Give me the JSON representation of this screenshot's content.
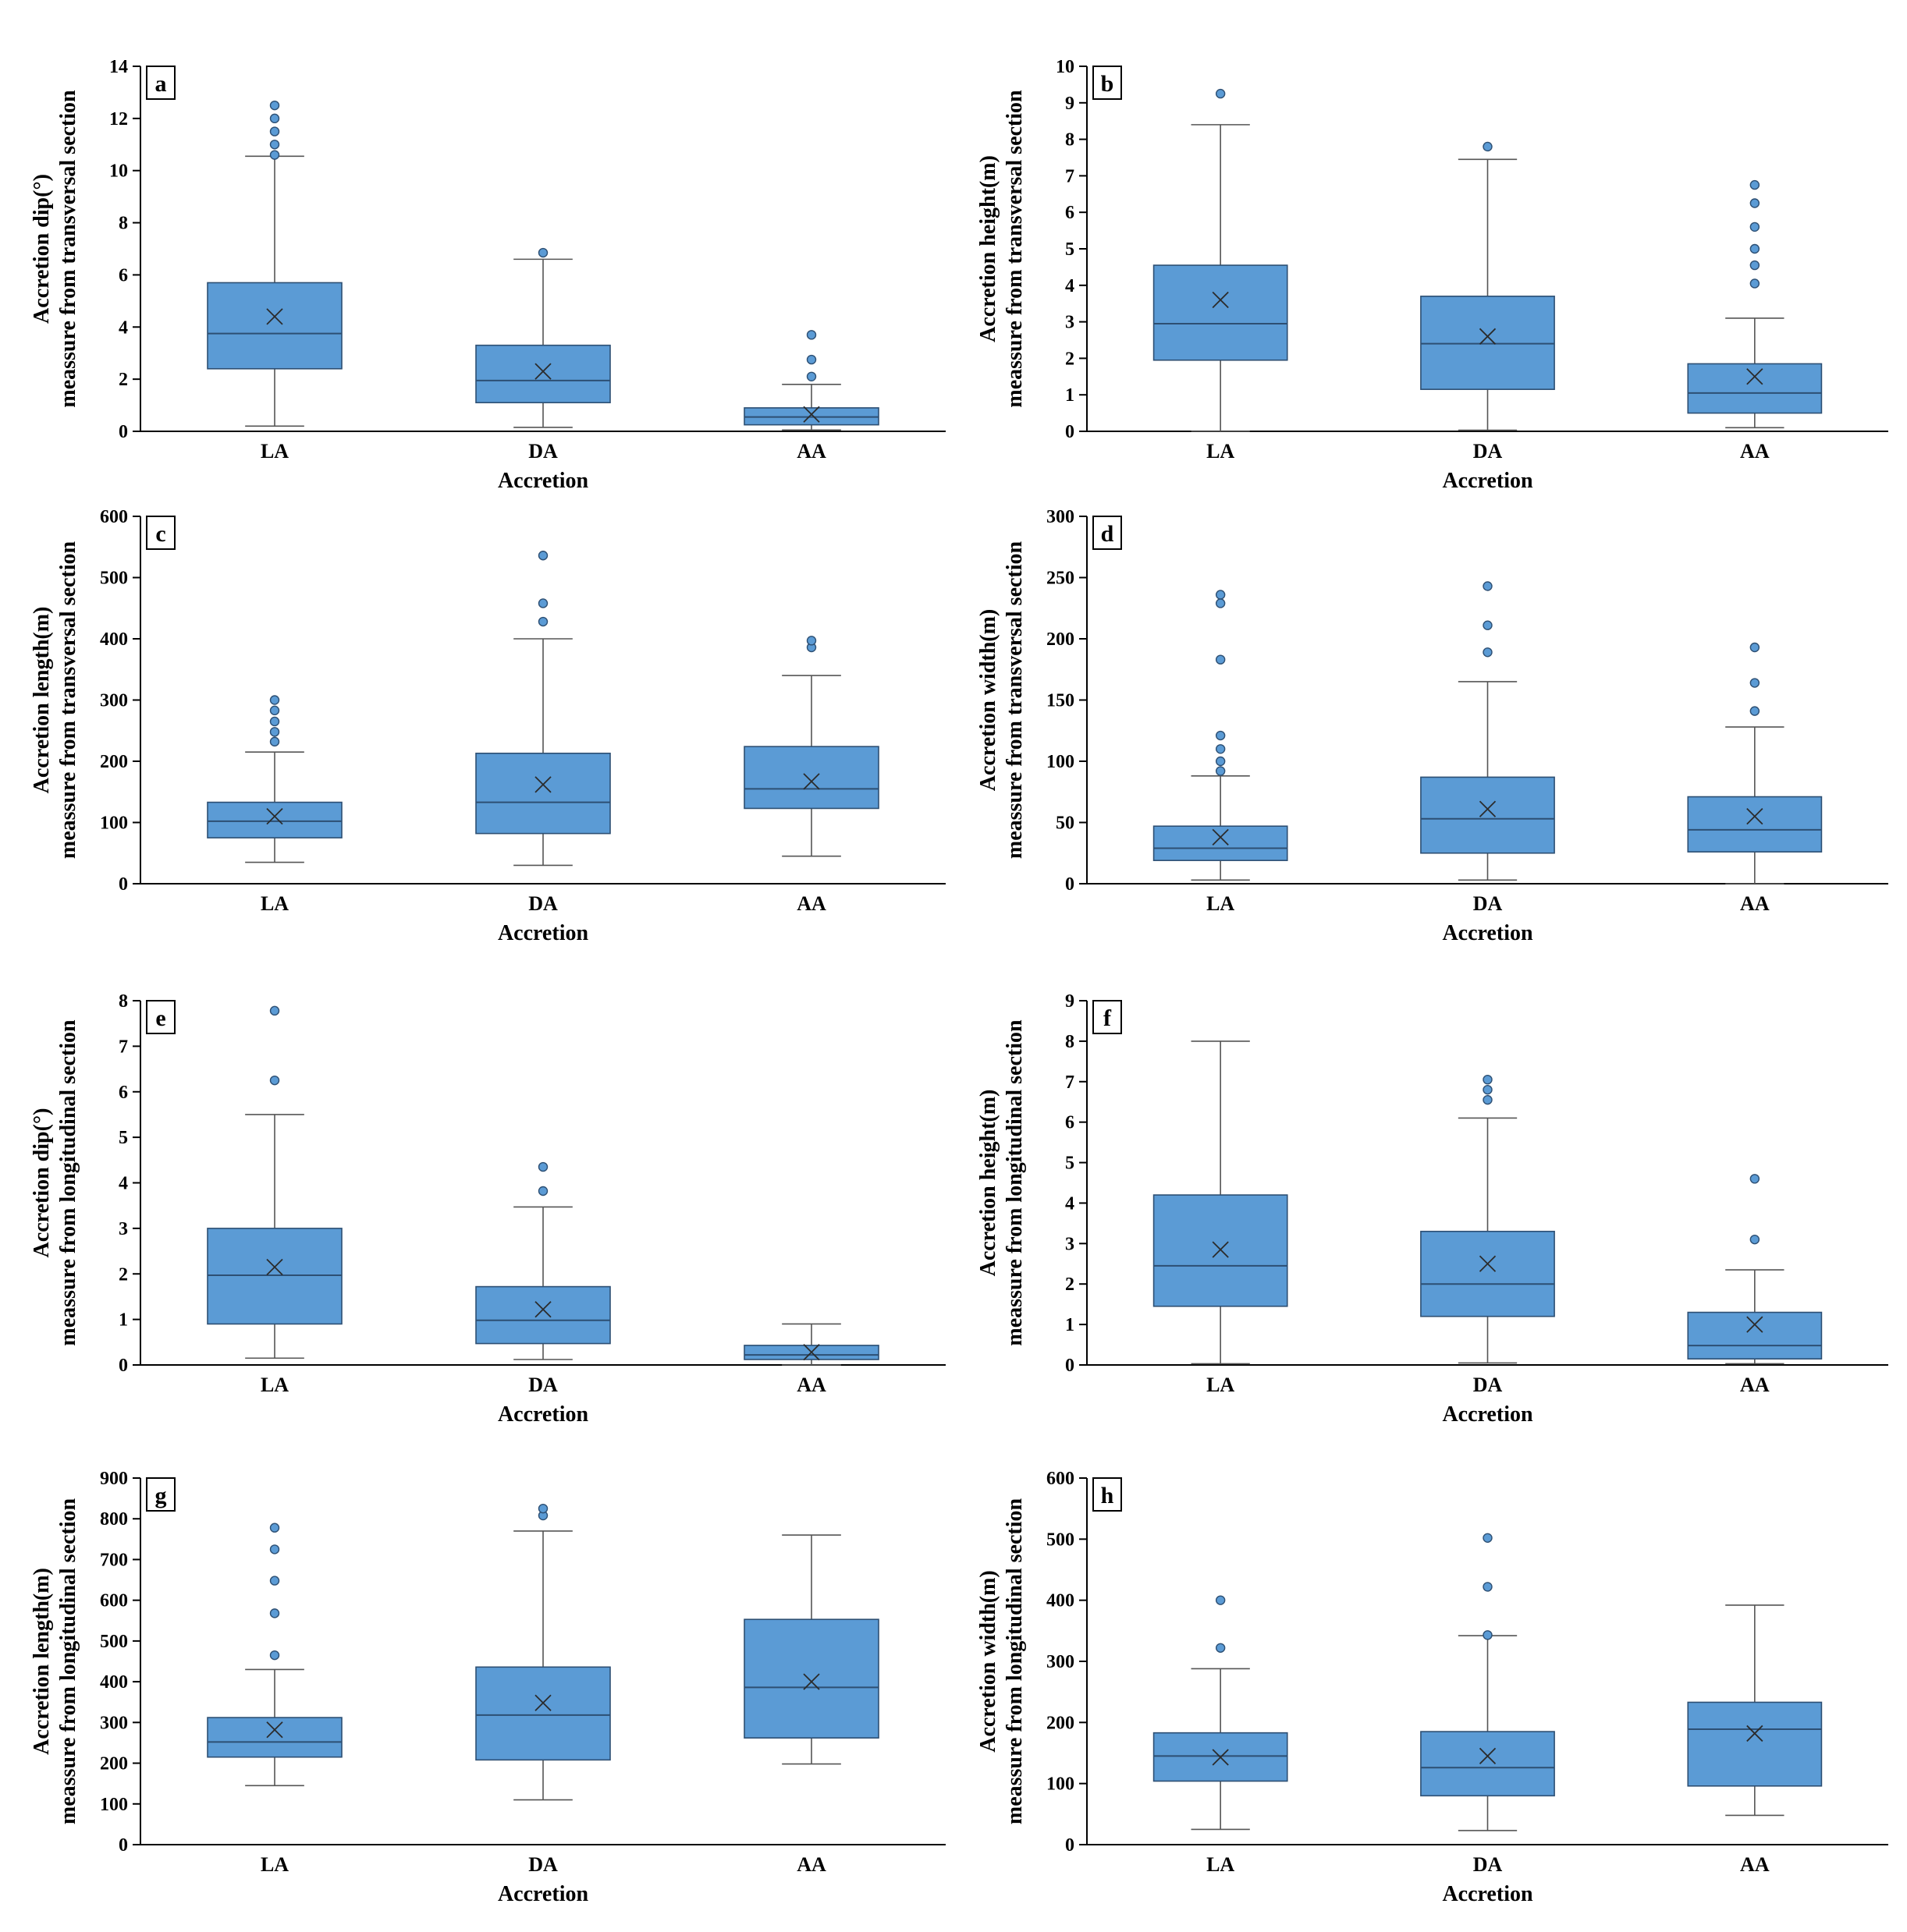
{
  "chart_data": [
    {
      "panel": "a",
      "type": "box",
      "categories": [
        "LA",
        "DA",
        "AA"
      ],
      "ylabel": [
        "Accretion dip(°)",
        "meassure from transversal section"
      ],
      "xlabel": "Accretion",
      "ylim": [
        0,
        14
      ],
      "yticks": [
        0,
        2,
        4,
        6,
        8,
        10,
        12,
        14
      ],
      "boxes": [
        {
          "min": 0.2,
          "q1": 2.4,
          "median": 3.75,
          "q3": 5.7,
          "max": 10.55,
          "mean": 4.4,
          "outliers": [
            10.6,
            11.0,
            11.5,
            12.0,
            12.5
          ]
        },
        {
          "min": 0.15,
          "q1": 1.1,
          "median": 1.95,
          "q3": 3.3,
          "max": 6.6,
          "mean": 2.3,
          "outliers": [
            6.85
          ]
        },
        {
          "min": 0.05,
          "q1": 0.25,
          "median": 0.55,
          "q3": 0.9,
          "max": 1.8,
          "mean": 0.65,
          "outliers": [
            2.1,
            2.75,
            3.7
          ]
        }
      ]
    },
    {
      "panel": "b",
      "type": "box",
      "categories": [
        "LA",
        "DA",
        "AA"
      ],
      "ylabel": [
        "Accretion height(m)",
        "meassure from transversal section"
      ],
      "xlabel": "Accretion",
      "ylim": [
        0,
        10
      ],
      "yticks": [
        0,
        1,
        2,
        3,
        4,
        5,
        6,
        7,
        8,
        9,
        10
      ],
      "boxes": [
        {
          "min": 0.0,
          "q1": 1.95,
          "median": 2.95,
          "q3": 4.55,
          "max": 8.4,
          "mean": 3.6,
          "outliers": [
            9.25
          ]
        },
        {
          "min": 0.03,
          "q1": 1.15,
          "median": 2.4,
          "q3": 3.7,
          "max": 7.45,
          "mean": 2.6,
          "outliers": [
            7.8
          ]
        },
        {
          "min": 0.1,
          "q1": 0.5,
          "median": 1.05,
          "q3": 1.85,
          "max": 3.1,
          "mean": 1.5,
          "outliers": [
            4.05,
            4.55,
            5.0,
            5.6,
            6.25,
            6.75
          ]
        }
      ]
    },
    {
      "panel": "c",
      "type": "box",
      "categories": [
        "LA",
        "DA",
        "AA"
      ],
      "ylabel": [
        "Accretion length(m)",
        "meassure from transversal section"
      ],
      "xlabel": "Accretion",
      "ylim": [
        0,
        600
      ],
      "yticks": [
        0,
        100,
        200,
        300,
        400,
        500,
        600
      ],
      "boxes": [
        {
          "min": 35,
          "q1": 75,
          "median": 102,
          "q3": 133,
          "max": 215,
          "mean": 110,
          "outliers": [
            232,
            248,
            265,
            283,
            300
          ]
        },
        {
          "min": 30,
          "q1": 82,
          "median": 133,
          "q3": 213,
          "max": 400,
          "mean": 162,
          "outliers": [
            428,
            458,
            536
          ]
        },
        {
          "min": 45,
          "q1": 123,
          "median": 155,
          "q3": 224,
          "max": 340,
          "mean": 167,
          "outliers": [
            386,
            397
          ]
        }
      ]
    },
    {
      "panel": "d",
      "type": "box",
      "categories": [
        "LA",
        "DA",
        "AA"
      ],
      "ylabel": [
        "Accretion width(m)",
        "meassure from transversal section"
      ],
      "xlabel": "Accretion",
      "ylim": [
        0,
        300
      ],
      "yticks": [
        0,
        50,
        100,
        150,
        200,
        250,
        300
      ],
      "boxes": [
        {
          "min": 3,
          "q1": 19,
          "median": 29,
          "q3": 47,
          "max": 88,
          "mean": 38,
          "outliers": [
            92,
            100,
            110,
            121,
            183,
            229,
            236
          ]
        },
        {
          "min": 3,
          "q1": 25,
          "median": 53,
          "q3": 87,
          "max": 165,
          "mean": 61,
          "outliers": [
            189,
            211,
            243
          ]
        },
        {
          "min": 0,
          "q1": 26,
          "median": 44,
          "q3": 71,
          "max": 128,
          "mean": 55,
          "outliers": [
            141,
            164,
            193
          ]
        }
      ]
    },
    {
      "panel": "e",
      "type": "box",
      "categories": [
        "LA",
        "DA",
        "AA"
      ],
      "ylabel": [
        "Accretion dip(°)",
        "meassure from longitudinal section"
      ],
      "xlabel": "Accretion",
      "ylim": [
        0,
        8
      ],
      "yticks": [
        0,
        1,
        2,
        3,
        4,
        5,
        6,
        7,
        8
      ],
      "boxes": [
        {
          "min": 0.15,
          "q1": 0.9,
          "median": 1.97,
          "q3": 3.0,
          "max": 5.5,
          "mean": 2.15,
          "outliers": [
            6.25,
            7.78
          ]
        },
        {
          "min": 0.12,
          "q1": 0.47,
          "median": 0.98,
          "q3": 1.72,
          "max": 3.47,
          "mean": 1.22,
          "outliers": [
            3.82,
            4.35
          ]
        },
        {
          "min": 0.0,
          "q1": 0.12,
          "median": 0.22,
          "q3": 0.43,
          "max": 0.9,
          "mean": 0.28,
          "outliers": []
        }
      ]
    },
    {
      "panel": "f",
      "type": "box",
      "categories": [
        "LA",
        "DA",
        "AA"
      ],
      "ylabel": [
        "Accretion height(m)",
        "meassure from longitudinal section"
      ],
      "xlabel": "Accretion",
      "ylim": [
        0,
        9
      ],
      "yticks": [
        0,
        1,
        2,
        3,
        4,
        5,
        6,
        7,
        8,
        9
      ],
      "boxes": [
        {
          "min": 0.03,
          "q1": 1.45,
          "median": 2.45,
          "q3": 4.2,
          "max": 8.0,
          "mean": 2.85,
          "outliers": []
        },
        {
          "min": 0.05,
          "q1": 1.2,
          "median": 2.0,
          "q3": 3.3,
          "max": 6.1,
          "mean": 2.5,
          "outliers": [
            6.55,
            6.8,
            7.05
          ]
        },
        {
          "min": 0.03,
          "q1": 0.15,
          "median": 0.48,
          "q3": 1.3,
          "max": 2.35,
          "mean": 1.0,
          "outliers": [
            3.1,
            4.6
          ]
        }
      ]
    },
    {
      "panel": "g",
      "type": "box",
      "categories": [
        "LA",
        "DA",
        "AA"
      ],
      "ylabel": [
        "Accretion length(m)",
        "meassure from longitudinal section"
      ],
      "xlabel": "Accretion",
      "ylim": [
        0,
        900
      ],
      "yticks": [
        0,
        100,
        200,
        300,
        400,
        500,
        600,
        700,
        800,
        900
      ],
      "boxes": [
        {
          "min": 145,
          "q1": 215,
          "median": 252,
          "q3": 312,
          "max": 430,
          "mean": 282,
          "outliers": [
            465,
            568,
            648,
            725,
            778
          ]
        },
        {
          "min": 110,
          "q1": 208,
          "median": 318,
          "q3": 436,
          "max": 770,
          "mean": 348,
          "outliers": [
            808,
            825
          ]
        },
        {
          "min": 198,
          "q1": 262,
          "median": 386,
          "q3": 553,
          "max": 760,
          "mean": 400,
          "outliers": []
        }
      ]
    },
    {
      "panel": "h",
      "type": "box",
      "categories": [
        "LA",
        "DA",
        "AA"
      ],
      "ylabel": [
        "Accretion width(m)",
        "meassure from longitudinal section"
      ],
      "xlabel": "Accretion",
      "ylim": [
        0,
        600
      ],
      "yticks": [
        0,
        100,
        200,
        300,
        400,
        500,
        600
      ],
      "boxes": [
        {
          "min": 25,
          "q1": 104,
          "median": 145,
          "q3": 183,
          "max": 288,
          "mean": 143,
          "outliers": [
            322,
            400
          ]
        },
        {
          "min": 23,
          "q1": 80,
          "median": 126,
          "q3": 185,
          "max": 342,
          "mean": 145,
          "outliers": [
            343,
            422,
            502
          ]
        },
        {
          "min": 48,
          "q1": 96,
          "median": 189,
          "q3": 233,
          "max": 392,
          "mean": 182,
          "outliers": []
        }
      ]
    }
  ],
  "colors": {
    "box_fill": "#5b9bd5",
    "box_stroke": "#2d4f73",
    "outlier_fill": "#5b9bd5",
    "outlier_stroke": "#2d4f73",
    "whisker": "#555555",
    "axis": "#000000"
  }
}
